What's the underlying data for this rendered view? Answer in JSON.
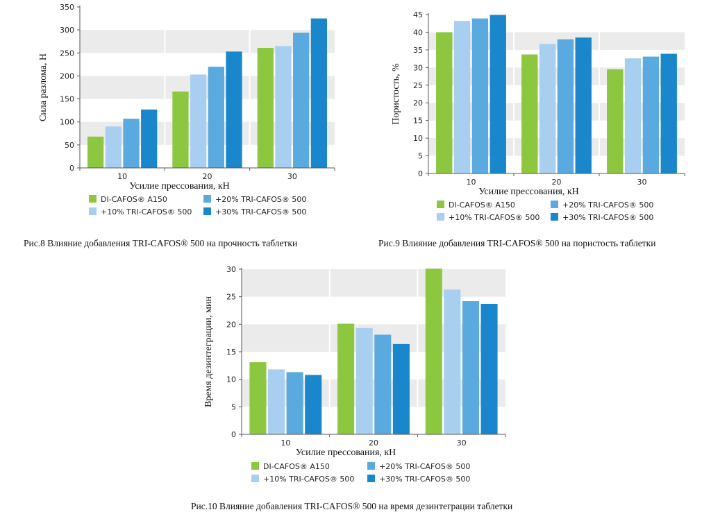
{
  "colors": {
    "band": "#ebebeb",
    "axis": "#555555",
    "series": [
      "#8dc63f",
      "#a9cff0",
      "#5aaae0",
      "#1a87cc"
    ]
  },
  "chart_data": [
    {
      "type": "bar",
      "categories": [
        "10",
        "20",
        "30"
      ],
      "series": [
        {
          "name": "DI-CAFOS® A150",
          "values": [
            68,
            166,
            261
          ]
        },
        {
          "name": "+10% TRI-CAFOS® 500",
          "values": [
            90,
            203,
            265
          ]
        },
        {
          "name": "+20% TRI-CAFOS® 500",
          "values": [
            107,
            220,
            294
          ]
        },
        {
          "name": "+30% TRI-CAFOS® 500",
          "values": [
            127,
            253,
            325
          ]
        }
      ],
      "xlabel": "Усилие прессования, кН",
      "ylabel": "Сила разлома, Н",
      "ylim": [
        0,
        350
      ],
      "yticks": [
        0,
        50,
        100,
        150,
        200,
        250,
        300,
        350
      ],
      "grid": "alternating bands",
      "legend": "bottom",
      "caption": "Рис.8 Влияние добавления TRI-CAFOS® 500 на прочность таблетки"
    },
    {
      "type": "bar",
      "categories": [
        "10",
        "20",
        "30"
      ],
      "series": [
        {
          "name": "DI-CAFOS® A150",
          "values": [
            40,
            33.7,
            29.5
          ]
        },
        {
          "name": "+10% TRI-CAFOS® 500",
          "values": [
            43.2,
            36.7,
            32.6
          ]
        },
        {
          "name": "+20% TRI-CAFOS® 500",
          "values": [
            43.9,
            38,
            33.1
          ]
        },
        {
          "name": "+30% TRI-CAFOS® 500",
          "values": [
            44.9,
            38.5,
            33.9
          ]
        }
      ],
      "xlabel": "Усилие прессования, кН",
      "ylabel": "Пористость, %",
      "ylim": [
        0,
        45
      ],
      "yticks": [
        0,
        5,
        10,
        15,
        20,
        25,
        30,
        35,
        40,
        45
      ],
      "grid": "alternating bands",
      "legend": "bottom",
      "caption": "Рис.9 Влияние добавления TRI-CAFOS® 500 на пористость таблетки"
    },
    {
      "type": "bar",
      "categories": [
        "10",
        "20",
        "30"
      ],
      "series": [
        {
          "name": "DI-CAFOS® A150",
          "values": [
            13.1,
            20.1,
            30.1
          ]
        },
        {
          "name": "+10% TRI-CAFOS® 500",
          "values": [
            11.8,
            19.3,
            26.3
          ]
        },
        {
          "name": "+20% TRI-CAFOS® 500",
          "values": [
            11.3,
            18.1,
            24.2
          ]
        },
        {
          "name": "+30% TRI-CAFOS® 500",
          "values": [
            10.8,
            16.4,
            23.7
          ]
        }
      ],
      "xlabel": "Усилие прессования, кН",
      "ylabel": "Время дезинтеграции, мин",
      "ylim": [
        0,
        30
      ],
      "yticks": [
        0,
        5,
        10,
        15,
        20,
        25,
        30
      ],
      "grid": "alternating bands",
      "legend": "bottom",
      "caption": "Рис.10 Влияние добавления TRI-CAFOS® 500 на время дезинтеграции таблетки"
    }
  ]
}
